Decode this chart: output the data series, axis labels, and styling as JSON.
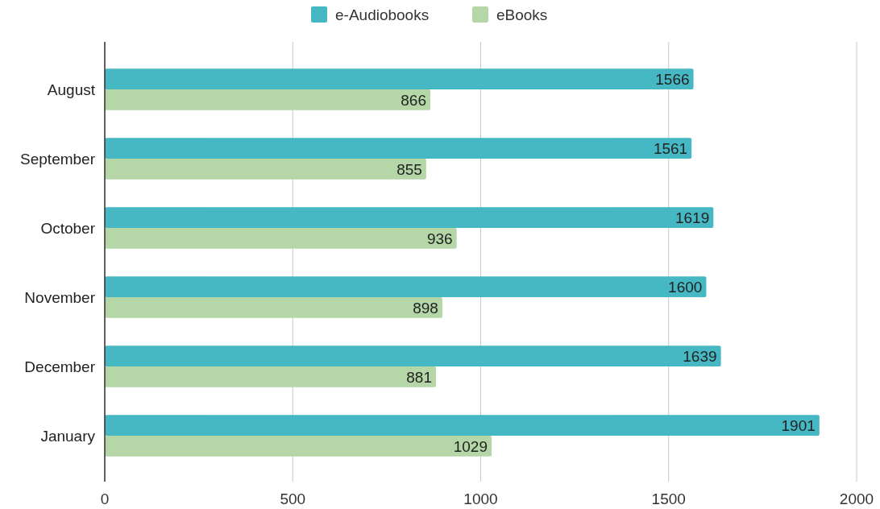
{
  "chart_data": {
    "type": "bar",
    "orientation": "horizontal",
    "categories": [
      "August",
      "September",
      "October",
      "November",
      "December",
      "January"
    ],
    "series": [
      {
        "name": "e-Audiobooks",
        "color": "#45b8c4",
        "values": [
          1566,
          1561,
          1619,
          1600,
          1639,
          1901
        ]
      },
      {
        "name": "eBooks",
        "color": "#b5d7a8",
        "values": [
          866,
          855,
          936,
          898,
          881,
          1029
        ]
      }
    ],
    "xlim": [
      0,
      2000
    ],
    "xticks": [
      0,
      500,
      1000,
      1500,
      2000
    ],
    "grid": "x",
    "legend": "top",
    "data_labels": true
  }
}
